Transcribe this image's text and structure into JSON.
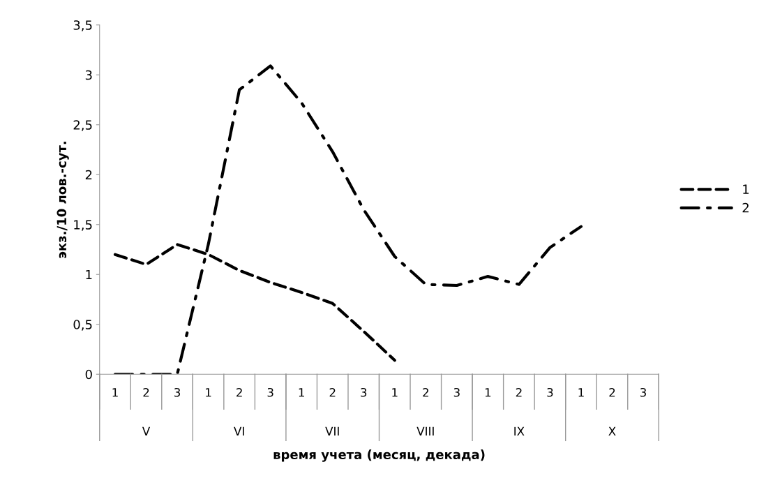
{
  "chart_data": {
    "type": "line",
    "ylabel": "экз./10 лов.-сут.",
    "xlabel": "время учета (месяц, декада)",
    "categories": [
      "1",
      "2",
      "3",
      "1",
      "2",
      "3",
      "1",
      "2",
      "3",
      "1",
      "2",
      "3",
      "1",
      "2",
      "3",
      "1",
      "2",
      "3"
    ],
    "annotations": [
      "V",
      "VI",
      "VII",
      "VIII",
      "IX",
      "X"
    ],
    "series": [
      {
        "name": "1",
        "color": "#000000",
        "line_style": "dashed",
        "values": [
          1.2,
          1.1,
          1.3,
          1.2,
          1.04,
          0.92,
          0.82,
          0.71,
          0.43,
          0.14,
          null,
          null,
          null,
          null,
          null,
          null,
          null,
          null
        ]
      },
      {
        "name": "2",
        "color": "#000000",
        "line_style": "dashdot",
        "values": [
          0,
          0,
          0,
          1.3,
          2.85,
          3.09,
          2.72,
          2.23,
          1.65,
          1.18,
          0.9,
          0.89,
          0.98,
          0.9,
          1.27,
          1.48,
          null,
          null
        ]
      }
    ],
    "ylim": [
      0,
      3.5
    ],
    "yticks": [
      {
        "value": 0,
        "label": "0"
      },
      {
        "value": 0.5,
        "label": "0,5"
      },
      {
        "value": 1,
        "label": "1"
      },
      {
        "value": 1.5,
        "label": "1,5"
      },
      {
        "value": 2,
        "label": "2"
      },
      {
        "value": 2.5,
        "label": "2,5"
      },
      {
        "value": 3,
        "label": "3"
      },
      {
        "value": 3.5,
        "label": "3,5"
      }
    ],
    "grid": false,
    "legend": "right",
    "marker": "none"
  }
}
